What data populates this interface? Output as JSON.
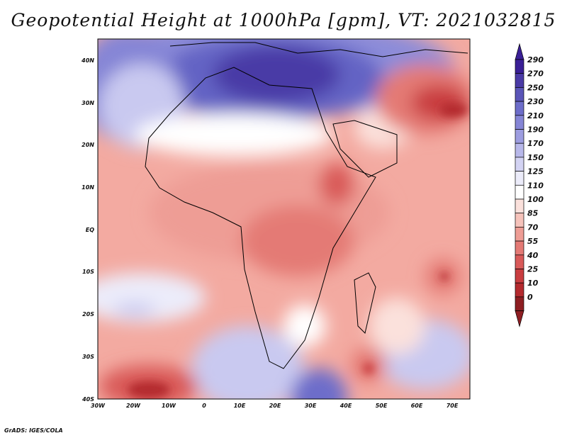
{
  "title": "Geopotential Height at 1000hPa [gpm], VT: 2021032815",
  "credit": "GrADS: IGES/COLA",
  "map": {
    "lon_range": [
      -30,
      75
    ],
    "lat_range": [
      -40,
      45
    ],
    "lon_ticks": [
      "30W",
      "20W",
      "10W",
      "0",
      "10E",
      "20E",
      "30E",
      "40E",
      "50E",
      "60E",
      "70E"
    ],
    "lat_ticks": [
      "40N",
      "30N",
      "20N",
      "10N",
      "EQ",
      "10S",
      "20S",
      "30S",
      "40S"
    ]
  },
  "colorbar": {
    "labels": [
      "290",
      "270",
      "250",
      "230",
      "210",
      "190",
      "170",
      "150",
      "125",
      "110",
      "100",
      "85",
      "70",
      "55",
      "40",
      "25",
      "10",
      "0"
    ],
    "colors": [
      "#3a1f96",
      "#4a3aa6",
      "#5a55b8",
      "#6d6dca",
      "#8585d6",
      "#9d9de0",
      "#b8b8ea",
      "#d3d3f3",
      "#ececfa",
      "#ffffff",
      "#fbe1dc",
      "#f6c3bb",
      "#ee9d95",
      "#e47a75",
      "#d95a59",
      "#c93d40",
      "#b42a2e",
      "#8e1e22"
    ]
  },
  "chart_data": {
    "type": "heatmap",
    "title": "Geopotential Height at 1000hPa [gpm], VT: 2021032815",
    "variable": "Geopotential Height at 1000hPa",
    "units": "gpm",
    "valid_time": "2021032815",
    "x_ticks": [
      "30W",
      "20W",
      "10W",
      "0",
      "10E",
      "20E",
      "30E",
      "40E",
      "50E",
      "60E",
      "70E"
    ],
    "y_ticks": [
      "40N",
      "30N",
      "20N",
      "10N",
      "EQ",
      "10S",
      "20S",
      "30S",
      "40S"
    ],
    "xlim": [
      -30,
      75
    ],
    "ylim": [
      -40,
      45
    ],
    "colorbar_levels": [
      0,
      10,
      25,
      40,
      55,
      70,
      85,
      100,
      110,
      125,
      150,
      170,
      190,
      210,
      230,
      250,
      270,
      290
    ]
  }
}
